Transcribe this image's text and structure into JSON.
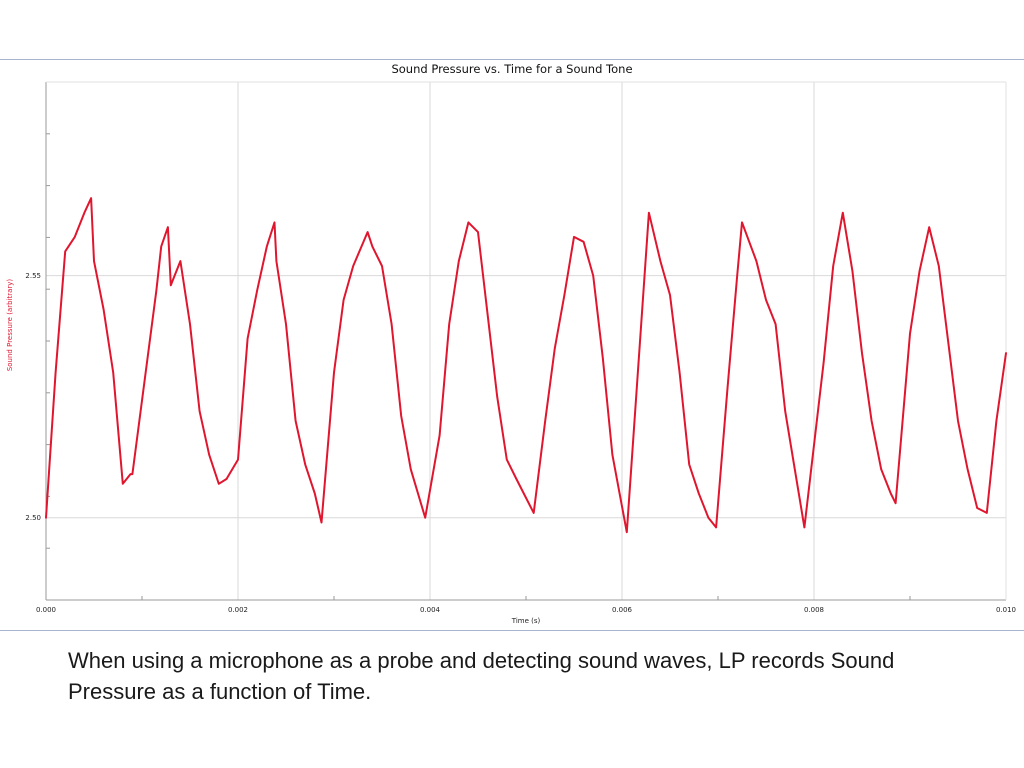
{
  "caption": "When using a microphone as a probe and detecting sound waves, LP records Sound Pressure as a function of Time.",
  "colors": {
    "series": "#e0162f",
    "grid": "#d9d9d9",
    "frame_border": "#a9b4cf",
    "ylabel": "#e0162f"
  },
  "chart_data": {
    "type": "line",
    "title": "Sound Pressure vs. Time for a Sound Tone",
    "xlabel": "Time (s)",
    "ylabel": "Sound Pressure (arbitrary)",
    "xlim": [
      0,
      0.01
    ],
    "ylim": [
      2.483,
      2.59
    ],
    "xticks": [
      0.0,
      0.002,
      0.004,
      0.006,
      0.008,
      0.01
    ],
    "xtick_labels": [
      "0.000",
      "0.002",
      "0.004",
      "0.006",
      "0.008",
      "0.010"
    ],
    "yticks": [
      2.5,
      2.55
    ],
    "ytick_labels": [
      "2.50",
      "2.55"
    ],
    "grid": true,
    "series": [
      {
        "x": [
          0.0,
          0.0001,
          0.0002,
          0.0003,
          0.0004,
          0.00047,
          0.0005,
          0.0006,
          0.0007,
          0.0008,
          0.00088,
          0.0009,
          0.00115,
          0.0012,
          0.00127,
          0.0013,
          0.0014,
          0.0015,
          0.0016,
          0.0017,
          0.0018,
          0.00188,
          0.002,
          0.0021,
          0.0022,
          0.0023,
          0.00238,
          0.0024,
          0.0025,
          0.0026,
          0.0027,
          0.0028,
          0.00287,
          0.003,
          0.0031,
          0.0032,
          0.00335,
          0.0034,
          0.0035,
          0.0036,
          0.0037,
          0.0038,
          0.00395,
          0.0041,
          0.0042,
          0.0043,
          0.0044,
          0.0045,
          0.0046,
          0.0047,
          0.0048,
          0.0049,
          0.00508,
          0.0052,
          0.0053,
          0.0054,
          0.0055,
          0.0056,
          0.0057,
          0.0058,
          0.0059,
          0.00605,
          0.0062,
          0.00628,
          0.0064,
          0.0065,
          0.0066,
          0.0067,
          0.0068,
          0.0069,
          0.00698,
          0.0071,
          0.0072,
          0.00725,
          0.0074,
          0.0075,
          0.0076,
          0.0077,
          0.0078,
          0.0079,
          0.0081,
          0.0082,
          0.0083,
          0.0084,
          0.0085,
          0.0086,
          0.0087,
          0.0088,
          0.00885,
          0.009,
          0.0091,
          0.0092,
          0.0093,
          0.0094,
          0.0095,
          0.0096,
          0.0097,
          0.0098,
          0.0099,
          0.01
        ],
        "y": [
          2.5,
          2.53,
          2.555,
          2.558,
          2.563,
          2.566,
          2.553,
          2.543,
          2.53,
          2.507,
          2.509,
          2.509,
          2.547,
          2.556,
          2.56,
          2.548,
          2.553,
          2.54,
          2.522,
          2.513,
          2.507,
          2.508,
          2.512,
          2.537,
          2.547,
          2.556,
          2.561,
          2.553,
          2.54,
          2.52,
          2.511,
          2.505,
          2.499,
          2.53,
          2.545,
          2.552,
          2.559,
          2.556,
          2.552,
          2.54,
          2.521,
          2.51,
          2.5,
          2.517,
          2.54,
          2.553,
          2.561,
          2.559,
          2.542,
          2.525,
          2.512,
          2.508,
          2.501,
          2.52,
          2.535,
          2.546,
          2.558,
          2.557,
          2.55,
          2.533,
          2.513,
          2.497,
          2.54,
          2.563,
          2.553,
          2.546,
          2.53,
          2.511,
          2.505,
          2.5,
          2.498,
          2.527,
          2.55,
          2.561,
          2.553,
          2.545,
          2.54,
          2.522,
          2.51,
          2.498,
          2.532,
          2.552,
          2.563,
          2.551,
          2.534,
          2.52,
          2.51,
          2.505,
          2.503,
          2.538,
          2.551,
          2.56,
          2.552,
          2.536,
          2.52,
          2.51,
          2.502,
          2.501,
          2.52,
          2.534
        ]
      }
    ]
  }
}
